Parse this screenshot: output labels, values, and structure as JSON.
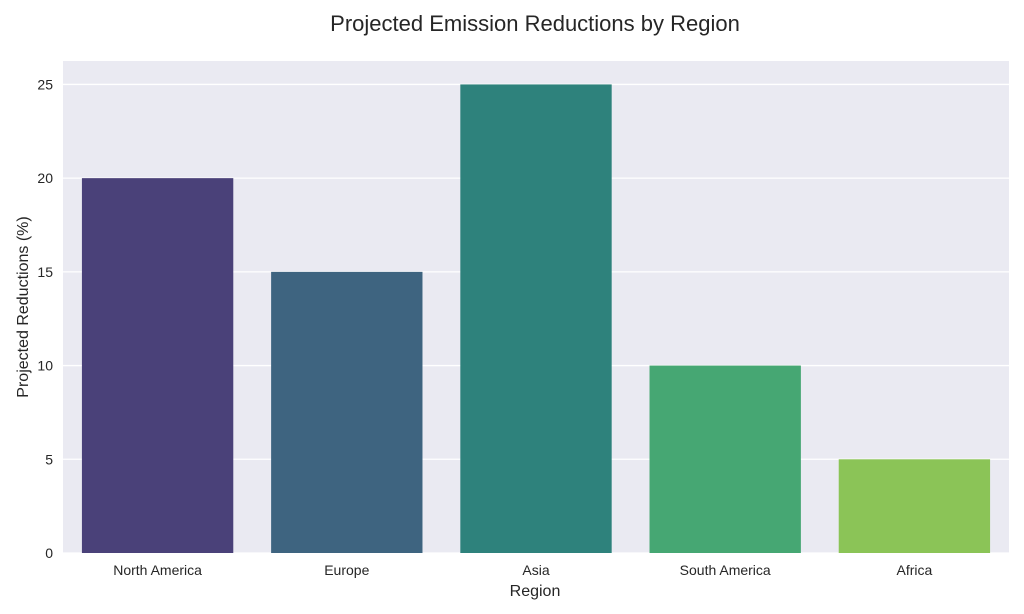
{
  "chart_data": {
    "type": "bar",
    "title": "Projected Emission Reductions by Region",
    "xlabel": "Region",
    "ylabel": "Projected Reductions (%)",
    "categories": [
      "North America",
      "Europe",
      "Asia",
      "South America",
      "Africa"
    ],
    "values": [
      20,
      15,
      25,
      10,
      5
    ],
    "colors": [
      "#4a4179",
      "#3e6480",
      "#2e827c",
      "#46a773",
      "#8bc457"
    ],
    "ylim": [
      0,
      26.25
    ],
    "yticks": [
      0,
      5,
      10,
      15,
      20,
      25
    ],
    "grid": true,
    "background": "#eaeaf2"
  }
}
